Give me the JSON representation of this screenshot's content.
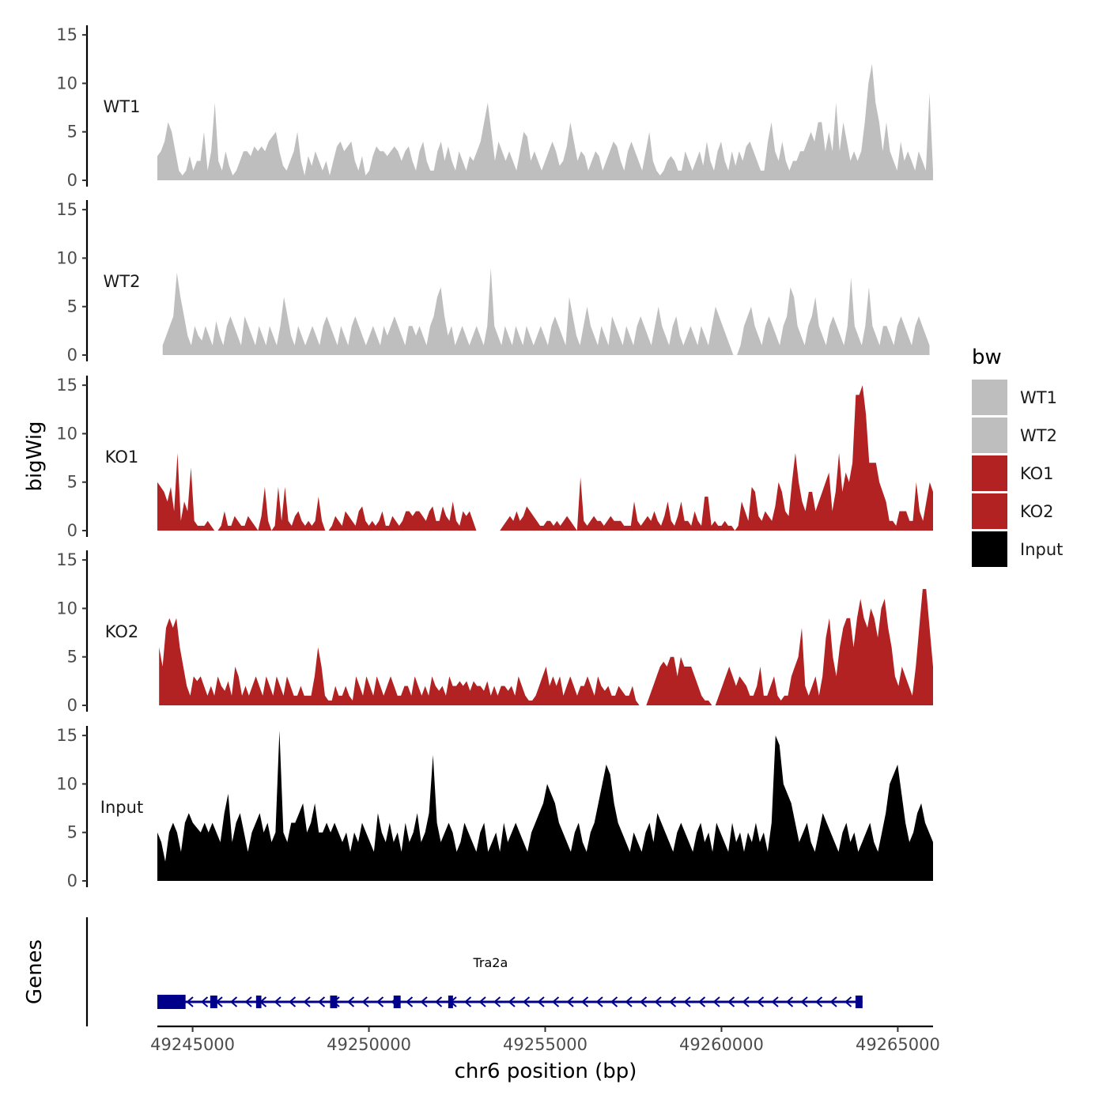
{
  "chart_data": {
    "type": "area",
    "title": "",
    "ylabel": "bigWig",
    "genes_label": "Genes",
    "xlabel": "chr6 position (bp)",
    "xlim": [
      49244000,
      49266000
    ],
    "ylim": [
      0,
      15.5
    ],
    "y_ticks": [
      0,
      5,
      10,
      15
    ],
    "x_ticks": [
      49245000,
      49250000,
      49255000,
      49260000,
      49265000
    ],
    "x_tick_labels": [
      "49245000",
      "49250000",
      "49255000",
      "49260000",
      "49265000"
    ],
    "legend": {
      "title": "bw",
      "position": "right",
      "entries": [
        {
          "label": "WT1",
          "color": "#bebebe"
        },
        {
          "label": "WT2",
          "color": "#bebebe"
        },
        {
          "label": "KO1",
          "color": "#b22222"
        },
        {
          "label": "KO2",
          "color": "#b22222"
        },
        {
          "label": "Input",
          "color": "#000000"
        }
      ]
    },
    "series": [
      {
        "name": "WT1",
        "color": "#bebebe",
        "x_start": 49244000,
        "x_end": 49266000,
        "values": [
          2.5,
          3,
          4,
          6,
          5,
          3,
          1,
          0.5,
          1,
          2.5,
          1,
          2,
          2,
          5,
          1,
          3,
          8,
          2,
          1,
          3,
          1.5,
          0.5,
          1,
          2,
          3,
          3,
          2.5,
          3.5,
          3,
          3.5,
          3,
          4,
          4.5,
          5,
          3,
          1.5,
          1,
          2,
          3,
          5,
          2,
          0.5,
          2.5,
          1.5,
          3,
          2,
          1,
          2,
          0.5,
          2,
          3.5,
          4,
          3,
          3.5,
          4,
          2,
          1,
          2.5,
          0.5,
          1,
          2.5,
          3.5,
          3,
          3,
          2.5,
          3,
          3.5,
          3,
          2,
          3,
          3.5,
          2,
          1,
          3,
          4,
          2,
          1,
          1,
          3,
          4,
          2,
          3.5,
          2,
          1,
          3,
          2,
          1,
          2.5,
          2,
          3,
          4,
          6,
          8,
          5,
          2,
          4,
          3,
          2,
          3,
          2,
          1,
          3,
          5,
          4.5,
          2,
          3,
          2,
          1,
          2,
          3,
          4,
          3,
          1.5,
          2,
          3.5,
          6,
          4,
          2,
          3,
          2.5,
          1,
          2,
          3,
          2.5,
          1,
          2,
          3,
          4,
          3.5,
          2,
          1,
          3,
          4,
          3,
          2,
          1,
          3,
          5,
          2,
          1,
          0.5,
          1,
          2,
          2.5,
          2,
          1,
          1,
          3,
          2,
          1,
          2,
          3,
          1.5,
          4,
          2,
          1,
          3,
          4,
          2,
          1,
          3,
          1.5,
          3,
          2,
          3.5,
          4,
          3,
          2,
          1,
          1,
          4,
          6,
          3,
          2,
          4,
          2,
          1,
          2,
          2,
          3,
          3,
          4,
          5,
          4,
          6,
          6,
          3,
          5,
          3,
          8,
          3,
          6,
          4,
          2,
          3,
          2,
          3,
          6,
          10,
          12,
          8,
          6,
          3,
          6,
          3,
          2,
          1,
          4,
          2,
          3,
          2,
          1,
          3,
          2,
          1,
          9,
          1
        ]
      },
      {
        "name": "WT2",
        "color": "#bebebe",
        "x_start": 49244150,
        "x_end": 49265900,
        "values": [
          1,
          2,
          3,
          4,
          8.5,
          6,
          4,
          2,
          1,
          3,
          2,
          1.5,
          3,
          2,
          1,
          3.5,
          2,
          1,
          3,
          4,
          3,
          2,
          1,
          4,
          3,
          2,
          1,
          3,
          2,
          1,
          3,
          2,
          1,
          3,
          6,
          4,
          2,
          1,
          3,
          2,
          1,
          2,
          3,
          2,
          1,
          3,
          4,
          3,
          2,
          1,
          3,
          2,
          1,
          3,
          4,
          3,
          2,
          1,
          2,
          3,
          2,
          1,
          3,
          2,
          3,
          4,
          3,
          2,
          1,
          3,
          3,
          2,
          3,
          2,
          1,
          3,
          4,
          6,
          7,
          4,
          2,
          3,
          1,
          2,
          3,
          2,
          1,
          2,
          3,
          2,
          1,
          3,
          9,
          3,
          2,
          1,
          3,
          2,
          1,
          3,
          2,
          1,
          3,
          2,
          1,
          2,
          3,
          2,
          1,
          3,
          4,
          3,
          2,
          1,
          6,
          4,
          2,
          1,
          3,
          5,
          3,
          2,
          1,
          3,
          2,
          1,
          4,
          3,
          2,
          1,
          3,
          2,
          1,
          3,
          4,
          3,
          2,
          1,
          3,
          5,
          3,
          2,
          1,
          3,
          4,
          2,
          1,
          2,
          3,
          2,
          1,
          3,
          2,
          1,
          3,
          5,
          4,
          3,
          2,
          1,
          0,
          0,
          1,
          3,
          4,
          5,
          3,
          2,
          1,
          3,
          4,
          3,
          2,
          1,
          3,
          4,
          7,
          6,
          3,
          2,
          1,
          3,
          4,
          6,
          3,
          2,
          1,
          3,
          4,
          3,
          2,
          1,
          3,
          8,
          3,
          2,
          1,
          3,
          7,
          3,
          2,
          1,
          3,
          3,
          2,
          1,
          3,
          4,
          3,
          2,
          1,
          3,
          4,
          3,
          2,
          1
        ]
      },
      {
        "name": "KO1",
        "color": "#b22222",
        "x_start": 49244000,
        "x_end": 49266000,
        "values": [
          5,
          4.5,
          4,
          3,
          4.5,
          2,
          8,
          1,
          3,
          2,
          6.5,
          1,
          0.5,
          0.5,
          0.5,
          1,
          0.5,
          0,
          0,
          0.5,
          2,
          0.5,
          0.5,
          1.5,
          1,
          0.5,
          0.5,
          1.5,
          1,
          0.5,
          0,
          1.5,
          4.5,
          1,
          0,
          0.5,
          4.5,
          1,
          4.5,
          1,
          0.5,
          1.5,
          2,
          1,
          0.5,
          1,
          0.5,
          1,
          3.5,
          1,
          0,
          0,
          0.5,
          1.5,
          1,
          0.5,
          2,
          1.5,
          1,
          0.5,
          2,
          2.5,
          1,
          0.5,
          1,
          0.5,
          1,
          2,
          0.5,
          0.5,
          1.5,
          1,
          0.5,
          1,
          2,
          2,
          1.5,
          2,
          2,
          1.5,
          1,
          2,
          2.5,
          1,
          1,
          2.5,
          1.5,
          1,
          3,
          1,
          0.5,
          2,
          1.5,
          2,
          1,
          0,
          0,
          0,
          0,
          0,
          0,
          0,
          0,
          0.5,
          1,
          1.5,
          1,
          2,
          1,
          1.5,
          2.5,
          2,
          1.5,
          1,
          0.5,
          0.5,
          1,
          1,
          0.5,
          1,
          0.5,
          1,
          1.5,
          1,
          0.5,
          0,
          5.5,
          1,
          0.5,
          1,
          1.5,
          1,
          1,
          0.5,
          1,
          1.5,
          1,
          1,
          1,
          0.5,
          0.5,
          0.5,
          3,
          1,
          0.5,
          1,
          1.5,
          1,
          2,
          1,
          0.5,
          1.5,
          3,
          1,
          0.5,
          1.5,
          3,
          1,
          1,
          0.5,
          2,
          1,
          0.5,
          3.5,
          3.5,
          0.5,
          1,
          0.5,
          0.5,
          1,
          0.5,
          0.5,
          0,
          0.5,
          3,
          2,
          1,
          4.5,
          4,
          1.5,
          1,
          2,
          1.5,
          1,
          2.5,
          5,
          4,
          2,
          1.5,
          5,
          8,
          5,
          3,
          2,
          4,
          4,
          2,
          3,
          4,
          5,
          6,
          2,
          4,
          8,
          4,
          6,
          5,
          7,
          14,
          14,
          15,
          12,
          7,
          7,
          7,
          5,
          4,
          3,
          1,
          1,
          0.5,
          2,
          2,
          2,
          1,
          1,
          5,
          2,
          1,
          3,
          5,
          4
        ]
      },
      {
        "name": "KO2",
        "color": "#b22222",
        "x_start": 49244050,
        "x_end": 49266000,
        "values": [
          6,
          4,
          8,
          9,
          8,
          9,
          6,
          4,
          2,
          1,
          3,
          2.5,
          3,
          2,
          1,
          2,
          1,
          3,
          2,
          1.5,
          2.5,
          1,
          4,
          3,
          1,
          2,
          1,
          2,
          3,
          2,
          1,
          3,
          2,
          1,
          3,
          2,
          1,
          3,
          2,
          1,
          1,
          2,
          1,
          1,
          1,
          3,
          6,
          4,
          1,
          0.5,
          0.5,
          2,
          1,
          1,
          2,
          1,
          0.5,
          3,
          2,
          1,
          3,
          2,
          1,
          3,
          2,
          1,
          2,
          3,
          2,
          1,
          1,
          2,
          2,
          1,
          3,
          2,
          1,
          2,
          1,
          3,
          2,
          1.5,
          2,
          1,
          3,
          2,
          2,
          2.5,
          2,
          2.5,
          1.5,
          2.5,
          2,
          2,
          1.5,
          2.5,
          1,
          2,
          1,
          2,
          2,
          1.5,
          2,
          1,
          3,
          2,
          1,
          0.5,
          0.5,
          1,
          2,
          3,
          4,
          2,
          3,
          2,
          3,
          1,
          2,
          3,
          2,
          1,
          2,
          2,
          3,
          2,
          1,
          3,
          2,
          1.5,
          2,
          1,
          1,
          2,
          1.5,
          1,
          1,
          2,
          0.5,
          0,
          0,
          0,
          1,
          2,
          3,
          4,
          4.5,
          4,
          5,
          5,
          3,
          5,
          4,
          4,
          4,
          3,
          2,
          1,
          0.5,
          0.5,
          0,
          0,
          1,
          2,
          3,
          4,
          3,
          2,
          3,
          2.5,
          2,
          1,
          1,
          2,
          4,
          1,
          1,
          2,
          3,
          1,
          0.5,
          1,
          1,
          3,
          4,
          5,
          8,
          2,
          1,
          2,
          3,
          1,
          3,
          7,
          9,
          5,
          3,
          6,
          8,
          9,
          9,
          6,
          9,
          11,
          9,
          8,
          10,
          9,
          7,
          10,
          11,
          8,
          6,
          3,
          2,
          4,
          3,
          2,
          1,
          4,
          8,
          12,
          12,
          8,
          4
        ]
      },
      {
        "name": "Input",
        "color": "#000000",
        "x_start": 49244000,
        "x_end": 49266000,
        "values": [
          5,
          4,
          2,
          5,
          6,
          5,
          3,
          6,
          7,
          6,
          5.5,
          5,
          6,
          5,
          6,
          5,
          4,
          7,
          9,
          4,
          6,
          7,
          5,
          3,
          5,
          6,
          7,
          5,
          6,
          4,
          5,
          15.5,
          5,
          4,
          6,
          6,
          7,
          8,
          5,
          6,
          8,
          5,
          5,
          6,
          5,
          6,
          5,
          4,
          5,
          3,
          5,
          4,
          6,
          5,
          4,
          3,
          7,
          5,
          4,
          6,
          4,
          5,
          3,
          6,
          4,
          5,
          7,
          4,
          5,
          7,
          13,
          6,
          4,
          5,
          6,
          5,
          3,
          4,
          6,
          5,
          4,
          3,
          5,
          6,
          3,
          4,
          5,
          3,
          6,
          4,
          5,
          6,
          5,
          4,
          3,
          5,
          6,
          7,
          8,
          10,
          9,
          8,
          6,
          5,
          4,
          3,
          5,
          6,
          4,
          3,
          5,
          6,
          8,
          10,
          12,
          11,
          8,
          6,
          5,
          4,
          3,
          5,
          4,
          3,
          5,
          6,
          4,
          7,
          6,
          5,
          4,
          3,
          5,
          6,
          5,
          4,
          3,
          5,
          6,
          4,
          5,
          3,
          6,
          5,
          4,
          3,
          6,
          4,
          5,
          3,
          5,
          4,
          6,
          4,
          5,
          3,
          6,
          15,
          14,
          10,
          9,
          8,
          6,
          4,
          5,
          6,
          4,
          3,
          5,
          7,
          6,
          5,
          4,
          3,
          5,
          6,
          4,
          5,
          3,
          4,
          5,
          6,
          4,
          3,
          5,
          7,
          10,
          11,
          12,
          9,
          6,
          4,
          5,
          7,
          8,
          6,
          5,
          4
        ]
      }
    ],
    "gene": {
      "name": "Tra2a",
      "strand": "-",
      "color": "#00008b",
      "start": 49244000,
      "end": 49264000,
      "exons": [
        [
          49244000,
          49244800
        ],
        [
          49245500,
          49245700
        ],
        [
          49246800,
          49246950
        ],
        [
          49248900,
          49249100
        ],
        [
          49250700,
          49250900
        ],
        [
          49252250,
          49252350
        ],
        [
          49263800,
          49264000
        ]
      ]
    }
  }
}
